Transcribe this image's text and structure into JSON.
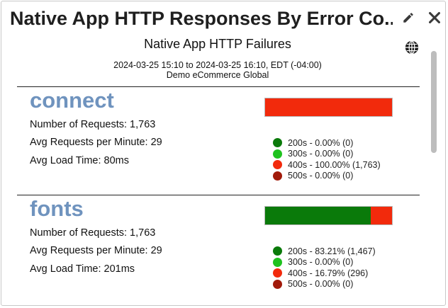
{
  "widget": {
    "title": "Native App HTTP Responses By Error Co...",
    "edit_icon": "pencil-icon",
    "close_icon": "close-icon"
  },
  "panel": {
    "title": "Native App HTTP Failures",
    "date_range": "2024-03-25 15:10 to 2024-03-25 16:10, EDT (-04:00)",
    "account": "Demo eCommerce Global",
    "globe_icon": "globe-icon"
  },
  "colors": {
    "200s": "#0a7a0a",
    "300s": "#1ec21e",
    "400s": "#f22a0c",
    "500s": "#a11a0a",
    "section_title": "#6f93be"
  },
  "sections": [
    {
      "name": "connect",
      "requests": "Number of Requests: 1,763",
      "rpm": "Avg Requests per Minute: 29",
      "load": "Avg Load Time: 80ms",
      "breakdown": [
        {
          "code": "200s",
          "pct": 0.0,
          "label": "200s - 0.00% (0)"
        },
        {
          "code": "300s",
          "pct": 0.0,
          "label": "300s - 0.00% (0)"
        },
        {
          "code": "400s",
          "pct": 100.0,
          "label": "400s - 100.00% (1,763)"
        },
        {
          "code": "500s",
          "pct": 0.0,
          "label": "500s - 0.00% (0)"
        }
      ]
    },
    {
      "name": "fonts",
      "requests": "Number of Requests: 1,763",
      "rpm": "Avg Requests per Minute: 29",
      "load": "Avg Load Time: 201ms",
      "breakdown": [
        {
          "code": "200s",
          "pct": 83.21,
          "label": "200s - 83.21% (1,467)"
        },
        {
          "code": "300s",
          "pct": 0.0,
          "label": "300s - 0.00% (0)"
        },
        {
          "code": "400s",
          "pct": 16.79,
          "label": "400s - 16.79% (296)"
        },
        {
          "code": "500s",
          "pct": 0.0,
          "label": "500s - 0.00% (0)"
        }
      ]
    }
  ]
}
